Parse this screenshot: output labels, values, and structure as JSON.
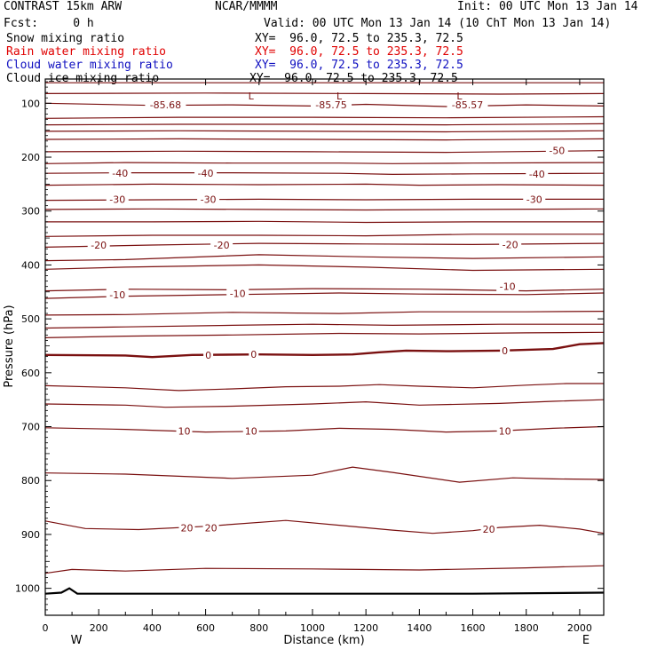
{
  "header": {
    "model": "CONTRAST 15km ARW",
    "org": "NCAR/MMMM",
    "init": "Init: 00 UTC Mon 13 Jan 14",
    "fcst": "Fcst:     0 h",
    "valid": "Valid: 00 UTC Mon 13 Jan 14 (10 ChT Mon 13 Jan 14)",
    "fields": [
      {
        "name": "Snow mixing ratio",
        "xy": "XY=  96.0, 72.5 to 235.3, 72.5",
        "color": "#000000"
      },
      {
        "name": "Rain water mixing ratio",
        "xy": "XY=  96.0, 72.5 to 235.3, 72.5",
        "color": "#e00000"
      },
      {
        "name": "Cloud water mixing ratio",
        "xy": "XY=  96.0, 72.5 to 235.3, 72.5",
        "color": "#1010c0"
      },
      {
        "name": "Cloud ice mixing ratio",
        "xy": "XY=  96.0, 72.5 to 235.3, 72.5",
        "color": "#000000"
      }
    ]
  },
  "chart_data": {
    "type": "line",
    "xlabel": "Distance (km)",
    "ylabel": "Pressure (hPa)",
    "xlim": [
      0,
      2090
    ],
    "ylim": [
      1050,
      55
    ],
    "x_ticks": [
      0,
      200,
      400,
      600,
      800,
      1000,
      1200,
      1400,
      1600,
      1800,
      2000
    ],
    "y_ticks": [
      100,
      200,
      300,
      400,
      500,
      600,
      700,
      800,
      900,
      1000
    ],
    "endpoint_labels": {
      "left": "W",
      "right": "E"
    },
    "contour_color": "#7a1010",
    "terrain": [
      [
        0,
        1010
      ],
      [
        60,
        1008
      ],
      [
        90,
        1000
      ],
      [
        120,
        1010
      ],
      [
        400,
        1010
      ],
      [
        1000,
        1010
      ],
      [
        1600,
        1010
      ],
      [
        2090,
        1008
      ]
    ],
    "contours": [
      {
        "pts": [
          [
            0,
            62
          ],
          [
            500,
            62
          ],
          [
            1000,
            62
          ],
          [
            1600,
            62
          ],
          [
            2090,
            62
          ]
        ]
      },
      {
        "pts": [
          [
            0,
            82
          ],
          [
            600,
            81
          ],
          [
            1200,
            82
          ],
          [
            1700,
            83
          ],
          [
            2090,
            82
          ]
        ]
      },
      {
        "pts": [
          [
            0,
            100
          ],
          [
            400,
            104
          ],
          [
            700,
            103
          ],
          [
            1000,
            105
          ],
          [
            1200,
            102
          ],
          [
            1500,
            106
          ],
          [
            1800,
            103
          ],
          [
            2090,
            105
          ]
        ]
      },
      {
        "pts": [
          [
            0,
            128
          ],
          [
            500,
            126
          ],
          [
            1000,
            126
          ],
          [
            1500,
            127
          ],
          [
            2090,
            125
          ]
        ]
      },
      {
        "pts": [
          [
            0,
            140
          ],
          [
            500,
            139
          ],
          [
            1000,
            139
          ],
          [
            1500,
            140
          ],
          [
            2090,
            138
          ]
        ]
      },
      {
        "pts": [
          [
            0,
            152
          ],
          [
            500,
            151
          ],
          [
            1000,
            152
          ],
          [
            1500,
            153
          ],
          [
            2090,
            151
          ]
        ]
      },
      {
        "pts": [
          [
            0,
            167
          ],
          [
            500,
            166
          ],
          [
            1000,
            167
          ],
          [
            1500,
            168
          ],
          [
            2090,
            166
          ]
        ]
      },
      {
        "pts": [
          [
            0,
            190
          ],
          [
            500,
            189
          ],
          [
            1000,
            190
          ],
          [
            1500,
            191
          ],
          [
            2090,
            188
          ]
        ]
      },
      {
        "pts": [
          [
            0,
            212
          ],
          [
            300,
            210
          ],
          [
            700,
            211
          ],
          [
            1100,
            211
          ],
          [
            1300,
            212
          ],
          [
            1600,
            211
          ],
          [
            2090,
            210
          ]
        ]
      },
      {
        "pts": [
          [
            0,
            230
          ],
          [
            300,
            229
          ],
          [
            700,
            229
          ],
          [
            1100,
            230
          ],
          [
            1300,
            232
          ],
          [
            1600,
            231
          ],
          [
            2090,
            230
          ]
        ]
      },
      {
        "pts": [
          [
            0,
            252
          ],
          [
            400,
            250
          ],
          [
            800,
            251
          ],
          [
            1200,
            250
          ],
          [
            1400,
            252
          ],
          [
            1700,
            251
          ],
          [
            2090,
            252
          ]
        ]
      },
      {
        "pts": [
          [
            0,
            280
          ],
          [
            400,
            279
          ],
          [
            800,
            278
          ],
          [
            1200,
            279
          ],
          [
            1600,
            278
          ],
          [
            2090,
            278
          ]
        ]
      },
      {
        "pts": [
          [
            0,
            297
          ],
          [
            400,
            296
          ],
          [
            800,
            297
          ],
          [
            1200,
            298
          ],
          [
            1600,
            297
          ],
          [
            2090,
            296
          ]
        ]
      },
      {
        "pts": [
          [
            0,
            320
          ],
          [
            400,
            320
          ],
          [
            800,
            319
          ],
          [
            1200,
            321
          ],
          [
            1600,
            320
          ],
          [
            2090,
            320
          ]
        ]
      },
      {
        "pts": [
          [
            0,
            347
          ],
          [
            400,
            345
          ],
          [
            800,
            345
          ],
          [
            1200,
            346
          ],
          [
            1600,
            343
          ],
          [
            2090,
            343
          ]
        ]
      },
      {
        "pts": [
          [
            0,
            367
          ],
          [
            400,
            363
          ],
          [
            800,
            360
          ],
          [
            1200,
            361
          ],
          [
            1600,
            362
          ],
          [
            2090,
            360
          ]
        ]
      },
      {
        "pts": [
          [
            0,
            392
          ],
          [
            300,
            390
          ],
          [
            800,
            381
          ],
          [
            1200,
            385
          ],
          [
            1600,
            388
          ],
          [
            2090,
            385
          ]
        ]
      },
      {
        "pts": [
          [
            0,
            408
          ],
          [
            300,
            404
          ],
          [
            800,
            400
          ],
          [
            1200,
            404
          ],
          [
            1600,
            410
          ],
          [
            2090,
            408
          ]
        ]
      },
      {
        "pts": [
          [
            0,
            448
          ],
          [
            300,
            445
          ],
          [
            700,
            446
          ],
          [
            1000,
            444
          ],
          [
            1400,
            445
          ],
          [
            1800,
            448
          ],
          [
            2090,
            445
          ]
        ]
      },
      {
        "pts": [
          [
            0,
            462
          ],
          [
            300,
            458
          ],
          [
            700,
            455
          ],
          [
            1100,
            452
          ],
          [
            1400,
            454
          ],
          [
            1800,
            455
          ],
          [
            2090,
            452
          ]
        ]
      },
      {
        "pts": [
          [
            0,
            493
          ],
          [
            300,
            492
          ],
          [
            700,
            488
          ],
          [
            1100,
            490
          ],
          [
            1400,
            487
          ],
          [
            1800,
            487
          ],
          [
            2090,
            486
          ]
        ]
      },
      {
        "pts": [
          [
            0,
            517
          ],
          [
            300,
            515
          ],
          [
            700,
            512
          ],
          [
            1000,
            510
          ],
          [
            1300,
            512
          ],
          [
            1700,
            510
          ],
          [
            2090,
            510
          ]
        ]
      },
      {
        "pts": [
          [
            0,
            535
          ],
          [
            300,
            532
          ],
          [
            700,
            530
          ],
          [
            1100,
            527
          ],
          [
            1400,
            528
          ],
          [
            1800,
            526
          ],
          [
            2090,
            525
          ]
        ]
      },
      {
        "pts": [
          [
            0,
            567
          ],
          [
            300,
            568
          ],
          [
            400,
            571
          ],
          [
            550,
            567
          ],
          [
            800,
            566
          ],
          [
            1000,
            567
          ],
          [
            1150,
            566
          ],
          [
            1250,
            562
          ],
          [
            1350,
            559
          ],
          [
            1500,
            560
          ],
          [
            1700,
            559
          ],
          [
            1900,
            556
          ],
          [
            2000,
            547
          ],
          [
            2090,
            545
          ]
        ],
        "bold": true
      },
      {
        "pts": [
          [
            0,
            624
          ],
          [
            300,
            628
          ],
          [
            500,
            633
          ],
          [
            700,
            630
          ],
          [
            900,
            626
          ],
          [
            1100,
            625
          ],
          [
            1250,
            622
          ],
          [
            1400,
            625
          ],
          [
            1600,
            628
          ],
          [
            1800,
            623
          ],
          [
            1950,
            620
          ],
          [
            2090,
            620
          ]
        ]
      },
      {
        "pts": [
          [
            0,
            658
          ],
          [
            300,
            660
          ],
          [
            450,
            664
          ],
          [
            700,
            662
          ],
          [
            1000,
            658
          ],
          [
            1200,
            654
          ],
          [
            1400,
            660
          ],
          [
            1700,
            657
          ],
          [
            1900,
            653
          ],
          [
            2090,
            650
          ]
        ]
      },
      {
        "pts": [
          [
            0,
            702
          ],
          [
            300,
            705
          ],
          [
            600,
            710
          ],
          [
            900,
            708
          ],
          [
            1100,
            703
          ],
          [
            1300,
            705
          ],
          [
            1500,
            710
          ],
          [
            1700,
            708
          ],
          [
            1900,
            703
          ],
          [
            2090,
            700
          ]
        ]
      },
      {
        "pts": [
          [
            0,
            786
          ],
          [
            300,
            788
          ],
          [
            700,
            796
          ],
          [
            1000,
            790
          ],
          [
            1150,
            775
          ],
          [
            1300,
            785
          ],
          [
            1550,
            803
          ],
          [
            1750,
            795
          ],
          [
            1900,
            797
          ],
          [
            2090,
            798
          ]
        ]
      },
      {
        "pts": [
          [
            0,
            875
          ],
          [
            150,
            889
          ],
          [
            350,
            891
          ],
          [
            600,
            885
          ],
          [
            900,
            874
          ],
          [
            1100,
            883
          ],
          [
            1300,
            892
          ],
          [
            1450,
            898
          ],
          [
            1600,
            893
          ],
          [
            1700,
            887
          ],
          [
            1850,
            883
          ],
          [
            2000,
            890
          ],
          [
            2090,
            898
          ]
        ]
      },
      {
        "pts": [
          [
            0,
            972
          ],
          [
            100,
            965
          ],
          [
            300,
            968
          ],
          [
            600,
            963
          ],
          [
            1000,
            964
          ],
          [
            1400,
            966
          ],
          [
            1800,
            962
          ],
          [
            2090,
            958
          ]
        ]
      }
    ],
    "contour_labels": [
      {
        "text": "-85.68",
        "x": 450,
        "p": 103
      },
      {
        "text": "-85.75",
        "x": 1070,
        "p": 103
      },
      {
        "text": "-85.57",
        "x": 1580,
        "p": 103
      },
      {
        "text": "-50",
        "x": 1915,
        "p": 188
      },
      {
        "text": "-40",
        "x": 280,
        "p": 230
      },
      {
        "text": "-40",
        "x": 600,
        "p": 230
      },
      {
        "text": "-40",
        "x": 1840,
        "p": 231
      },
      {
        "text": "-30",
        "x": 270,
        "p": 278
      },
      {
        "text": "-30",
        "x": 610,
        "p": 278
      },
      {
        "text": "-30",
        "x": 1830,
        "p": 278
      },
      {
        "text": "-20",
        "x": 200,
        "p": 363
      },
      {
        "text": "-20",
        "x": 660,
        "p": 363
      },
      {
        "text": "-20",
        "x": 1740,
        "p": 362
      },
      {
        "text": "-10",
        "x": 270,
        "p": 455
      },
      {
        "text": "-10",
        "x": 720,
        "p": 453
      },
      {
        "text": "-10",
        "x": 1730,
        "p": 440
      },
      {
        "text": "0",
        "x": 610,
        "p": 567
      },
      {
        "text": "0",
        "x": 780,
        "p": 566
      },
      {
        "text": "0",
        "x": 1720,
        "p": 559
      },
      {
        "text": "10",
        "x": 520,
        "p": 708
      },
      {
        "text": "10",
        "x": 770,
        "p": 708
      },
      {
        "text": "10",
        "x": 1720,
        "p": 708
      },
      {
        "text": "20",
        "x": 530,
        "p": 888
      },
      {
        "text": "20",
        "x": 620,
        "p": 888
      },
      {
        "text": "20",
        "x": 1660,
        "p": 890
      }
    ],
    "low_markers": [
      {
        "text": "L",
        "x": 770,
        "p": 86
      },
      {
        "text": "L",
        "x": 1100,
        "p": 86
      },
      {
        "text": "L",
        "x": 1550,
        "p": 86
      }
    ]
  }
}
